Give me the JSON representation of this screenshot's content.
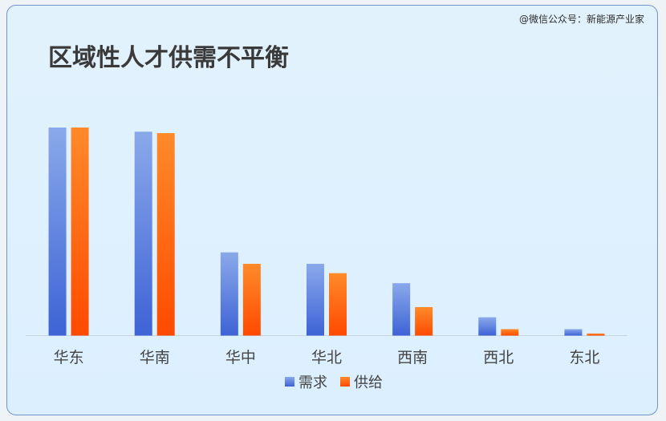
{
  "watermark": "@微信公众号：新能源产业家",
  "chart_data": {
    "type": "bar",
    "title": "区域性人才供需不平衡",
    "categories": [
      "华东",
      "华南",
      "华中",
      "华北",
      "西南",
      "西北",
      "东北"
    ],
    "series": [
      {
        "name": "需求",
        "values": [
          100,
          98,
          40,
          34.5,
          25.2,
          8.8,
          3.1
        ]
      },
      {
        "name": "供给",
        "values": [
          100,
          97.3,
          34.5,
          30,
          13.7,
          3.1,
          1
        ]
      }
    ],
    "ylim": [
      0,
      100
    ],
    "grid": false,
    "legend": "bottom",
    "colors": {
      "需求": [
        "#8aa9ea",
        "#3d63d6"
      ],
      "供给": [
        "#ff8a2a",
        "#ff4a00"
      ]
    }
  }
}
